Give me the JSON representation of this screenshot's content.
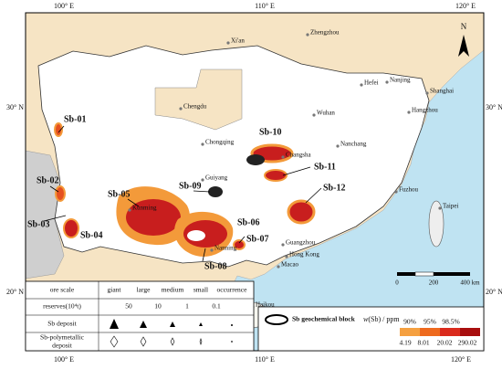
{
  "axes": {
    "top": [
      "100° E",
      "110° E",
      "120° E"
    ],
    "bottom": [
      "100° E",
      "110° E",
      "120° E"
    ],
    "left": [
      "30° N",
      "20° N"
    ],
    "right": [
      "30° N",
      "20° N"
    ]
  },
  "north": "N",
  "cities": [
    "Xi'an",
    "Zhengzhou",
    "Hefei",
    "Nanjing",
    "Shanghai",
    "Chengdu",
    "Chongqing",
    "Wuhan",
    "Hangzhou",
    "Changsha",
    "Nanchang",
    "Guiyang",
    "Kunming",
    "Nanning",
    "Fuzhou",
    "Taipei",
    "Guangzhou",
    "Hong Kong",
    "Macao",
    "Haikou"
  ],
  "blocks": [
    "Sb-01",
    "Sb-02",
    "Sb-03",
    "Sb-04",
    "Sb-05",
    "Sb-06",
    "Sb-07",
    "Sb-08",
    "Sb-09",
    "Sb-10",
    "Sb-11",
    "Sb-12"
  ],
  "scale_bar": [
    "0",
    "200",
    "400 km"
  ],
  "legend_table": {
    "header": [
      "ore scale",
      "giant",
      "large",
      "medium",
      "small",
      "occurrence"
    ],
    "reserves": [
      "reserves(10⁴t)",
      "50",
      "10",
      "1",
      "0.1"
    ],
    "sb_deposit": "Sb deposit",
    "polymetallic": [
      "Sb-polymetallic",
      "deposit"
    ]
  },
  "legend_box": {
    "block": "Sb geochemical block",
    "unit_w": "w",
    "unit_rest": "(Sb) / ppm",
    "percentiles": [
      "90%",
      "95%",
      "98.5%"
    ],
    "values": [
      "4.19",
      "8.01",
      "20.02",
      "290.02"
    ]
  }
}
